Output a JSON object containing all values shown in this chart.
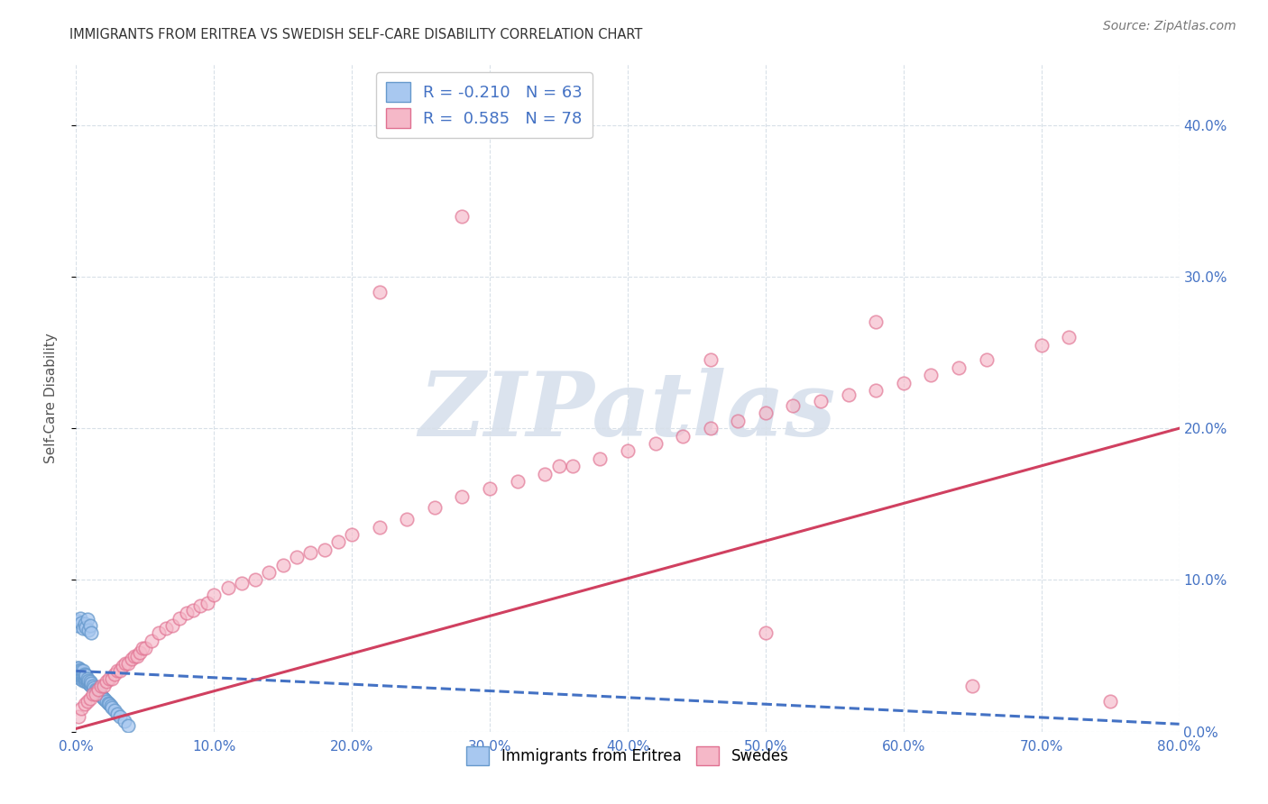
{
  "title": "IMMIGRANTS FROM ERITREA VS SWEDISH SELF-CARE DISABILITY CORRELATION CHART",
  "source": "Source: ZipAtlas.com",
  "ylabel_label": "Self-Care Disability",
  "legend_bottom": [
    "Immigrants from Eritrea",
    "Swedes"
  ],
  "legend_box_R1": "R = -0.210",
  "legend_box_N1": "N = 63",
  "legend_box_R2": "R =  0.585",
  "legend_box_N2": "N = 78",
  "blue_face": "#a8c8f0",
  "blue_edge": "#6699cc",
  "pink_face": "#f5b8c8",
  "pink_edge": "#e07090",
  "blue_line_color": "#4472c4",
  "pink_line_color": "#d04060",
  "axis_label_color": "#4472c4",
  "title_color": "#333333",
  "source_color": "#777777",
  "grid_color": "#d8e0e8",
  "background_color": "#ffffff",
  "watermark_text": "ZIPatlas",
  "watermark_color": "#ccd8e8",
  "xlim": [
    0.0,
    0.8
  ],
  "ylim": [
    0.0,
    0.44
  ],
  "xticks": [
    0.0,
    0.1,
    0.2,
    0.3,
    0.4,
    0.5,
    0.6,
    0.7,
    0.8
  ],
  "yticks": [
    0.0,
    0.1,
    0.2,
    0.3,
    0.4
  ],
  "blue_x": [
    0.001,
    0.001,
    0.001,
    0.002,
    0.002,
    0.002,
    0.002,
    0.003,
    0.003,
    0.003,
    0.003,
    0.004,
    0.004,
    0.004,
    0.005,
    0.005,
    0.005,
    0.005,
    0.006,
    0.006,
    0.006,
    0.007,
    0.007,
    0.007,
    0.008,
    0.008,
    0.009,
    0.009,
    0.01,
    0.01,
    0.011,
    0.011,
    0.012,
    0.013,
    0.014,
    0.015,
    0.016,
    0.017,
    0.018,
    0.019,
    0.02,
    0.021,
    0.022,
    0.023,
    0.024,
    0.025,
    0.026,
    0.028,
    0.03,
    0.032,
    0.035,
    0.038,
    0.001,
    0.002,
    0.003,
    0.004,
    0.005,
    0.006,
    0.007,
    0.008,
    0.009,
    0.01,
    0.011
  ],
  "blue_y": [
    0.038,
    0.04,
    0.042,
    0.036,
    0.038,
    0.04,
    0.042,
    0.035,
    0.037,
    0.039,
    0.041,
    0.036,
    0.038,
    0.04,
    0.034,
    0.036,
    0.038,
    0.04,
    0.034,
    0.036,
    0.038,
    0.033,
    0.035,
    0.037,
    0.033,
    0.035,
    0.032,
    0.034,
    0.031,
    0.033,
    0.03,
    0.032,
    0.03,
    0.029,
    0.028,
    0.027,
    0.026,
    0.025,
    0.024,
    0.023,
    0.022,
    0.021,
    0.02,
    0.019,
    0.018,
    0.017,
    0.016,
    0.014,
    0.012,
    0.01,
    0.007,
    0.004,
    0.07,
    0.073,
    0.075,
    0.072,
    0.068,
    0.071,
    0.069,
    0.074,
    0.067,
    0.07,
    0.065
  ],
  "pink_x": [
    0.002,
    0.004,
    0.006,
    0.008,
    0.01,
    0.012,
    0.014,
    0.016,
    0.018,
    0.02,
    0.022,
    0.024,
    0.026,
    0.028,
    0.03,
    0.032,
    0.034,
    0.036,
    0.038,
    0.04,
    0.042,
    0.044,
    0.046,
    0.048,
    0.05,
    0.055,
    0.06,
    0.065,
    0.07,
    0.075,
    0.08,
    0.085,
    0.09,
    0.095,
    0.1,
    0.11,
    0.12,
    0.13,
    0.14,
    0.15,
    0.16,
    0.17,
    0.18,
    0.19,
    0.2,
    0.22,
    0.24,
    0.26,
    0.28,
    0.3,
    0.32,
    0.34,
    0.36,
    0.38,
    0.4,
    0.42,
    0.44,
    0.46,
    0.48,
    0.5,
    0.52,
    0.54,
    0.56,
    0.58,
    0.6,
    0.62,
    0.64,
    0.66,
    0.7,
    0.72,
    0.28,
    0.22,
    0.58,
    0.46,
    0.35,
    0.5,
    0.65,
    0.75
  ],
  "pink_y": [
    0.01,
    0.015,
    0.018,
    0.02,
    0.022,
    0.025,
    0.025,
    0.028,
    0.03,
    0.03,
    0.033,
    0.035,
    0.035,
    0.038,
    0.04,
    0.04,
    0.043,
    0.045,
    0.045,
    0.048,
    0.05,
    0.05,
    0.052,
    0.055,
    0.055,
    0.06,
    0.065,
    0.068,
    0.07,
    0.075,
    0.078,
    0.08,
    0.083,
    0.085,
    0.09,
    0.095,
    0.098,
    0.1,
    0.105,
    0.11,
    0.115,
    0.118,
    0.12,
    0.125,
    0.13,
    0.135,
    0.14,
    0.148,
    0.155,
    0.16,
    0.165,
    0.17,
    0.175,
    0.18,
    0.185,
    0.19,
    0.195,
    0.2,
    0.205,
    0.21,
    0.215,
    0.218,
    0.222,
    0.225,
    0.23,
    0.235,
    0.24,
    0.245,
    0.255,
    0.26,
    0.34,
    0.29,
    0.27,
    0.245,
    0.175,
    0.065,
    0.03,
    0.02
  ],
  "blue_line_x": [
    0.0,
    0.8
  ],
  "blue_line_y_start": 0.04,
  "blue_line_y_end": 0.005,
  "pink_line_x": [
    0.0,
    0.8
  ],
  "pink_line_y_start": 0.002,
  "pink_line_y_end": 0.2
}
